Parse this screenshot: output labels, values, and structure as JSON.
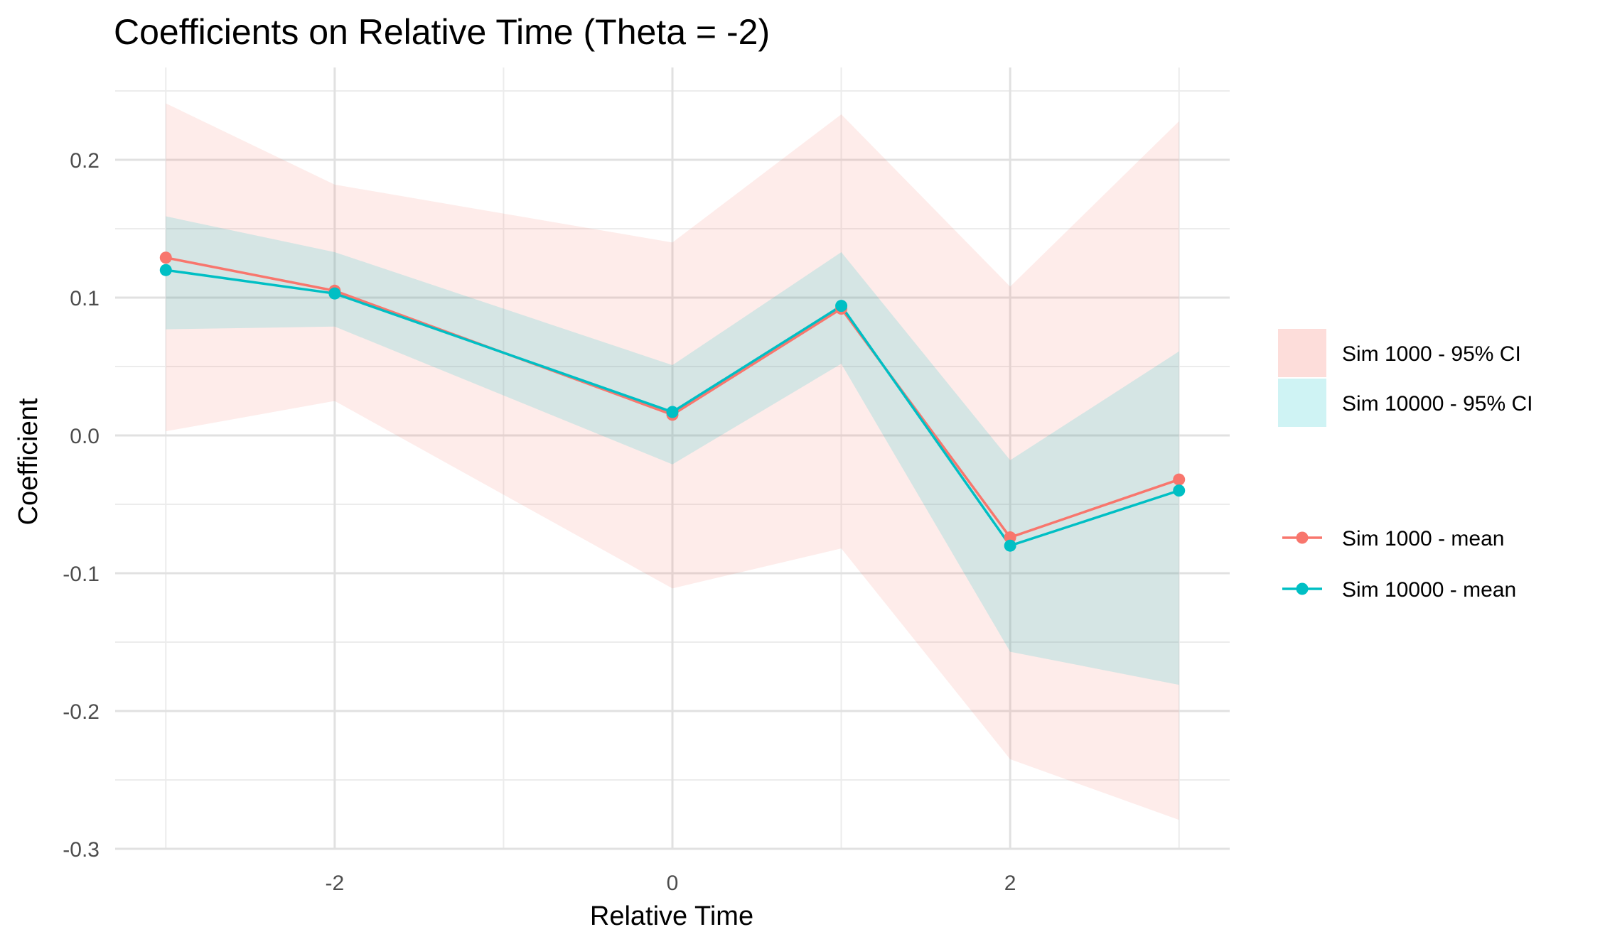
{
  "chart_data": {
    "type": "line",
    "title": "Coefficients on Relative Time (Theta = -2)",
    "xlabel": "Relative Time",
    "ylabel": "Coefficient",
    "xlim": [
      -3.3,
      3.3
    ],
    "ylim": [
      -0.3,
      0.25
    ],
    "x_ticks": [
      -2,
      0,
      2
    ],
    "x_tick_labels": [
      "-2",
      "0",
      "2"
    ],
    "y_ticks": [
      -0.3,
      -0.2,
      -0.1,
      0.0,
      0.1,
      0.2
    ],
    "y_tick_labels": [
      "-0.3",
      "-0.2",
      "-0.1",
      "0.0",
      "0.1",
      "0.2"
    ],
    "grid": true,
    "legend_position": "right",
    "x": [
      -3,
      -2,
      0,
      1,
      2,
      3
    ],
    "series": [
      {
        "name": "Sim 1000 - mean",
        "ribbon_name": "Sim 1000 - 95% CI",
        "color": "#F8766D",
        "values": [
          0.129,
          0.105,
          0.015,
          0.092,
          -0.074,
          -0.032
        ],
        "lower": [
          0.003,
          0.025,
          -0.111,
          -0.082,
          -0.235,
          -0.279
        ],
        "upper": [
          0.241,
          0.182,
          0.14,
          0.233,
          0.108,
          0.228
        ]
      },
      {
        "name": "Sim 10000 - mean",
        "ribbon_name": "Sim 10000 - 95% CI",
        "color": "#00BFC4",
        "values": [
          0.12,
          0.103,
          0.017,
          0.094,
          -0.08,
          -0.04
        ],
        "lower": [
          0.077,
          0.079,
          -0.021,
          0.052,
          -0.157,
          -0.181
        ],
        "upper": [
          0.159,
          0.133,
          0.051,
          0.133,
          -0.018,
          0.061
        ]
      }
    ]
  }
}
